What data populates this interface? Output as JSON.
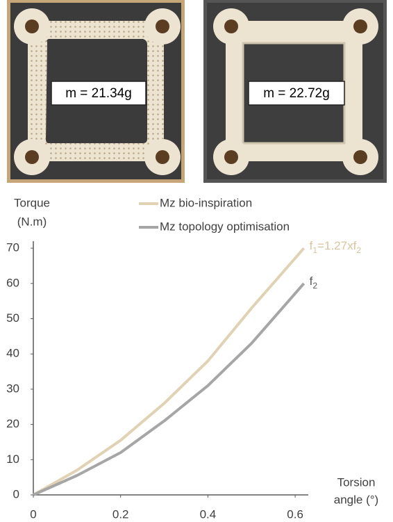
{
  "photos": [
    {
      "label": "m = 21.34g"
    },
    {
      "label": "m = 22.72g"
    }
  ],
  "chart_data": {
    "type": "line",
    "ylabel": [
      "Torque",
      "(N.m)"
    ],
    "xlabel": [
      "Torsion",
      "angle (°)"
    ],
    "x": [
      0,
      0.1,
      0.2,
      0.3,
      0.4,
      0.5,
      0.62
    ],
    "series": [
      {
        "name": "Mz bio-inspiration",
        "color": "#e2d2b4",
        "values": [
          0,
          7,
          15.5,
          26,
          38,
          53,
          70
        ]
      },
      {
        "name": "Mz topology optimisation",
        "color": "#a6a6a6",
        "values": [
          0,
          5.5,
          12,
          21,
          31,
          43,
          60
        ]
      }
    ],
    "annotations": [
      {
        "parts": [
          "f",
          "1",
          "=1.27xf",
          "2"
        ],
        "color": "#d9c49e"
      },
      {
        "parts": [
          "f",
          "2"
        ],
        "color": "#595959"
      }
    ],
    "xlim": [
      0,
      0.63
    ],
    "ylim": [
      0,
      72
    ],
    "xticks": [
      0,
      0.2,
      0.4,
      0.6
    ],
    "yticks": [
      0,
      10,
      20,
      30,
      40,
      50,
      60,
      70
    ],
    "grid": false
  }
}
